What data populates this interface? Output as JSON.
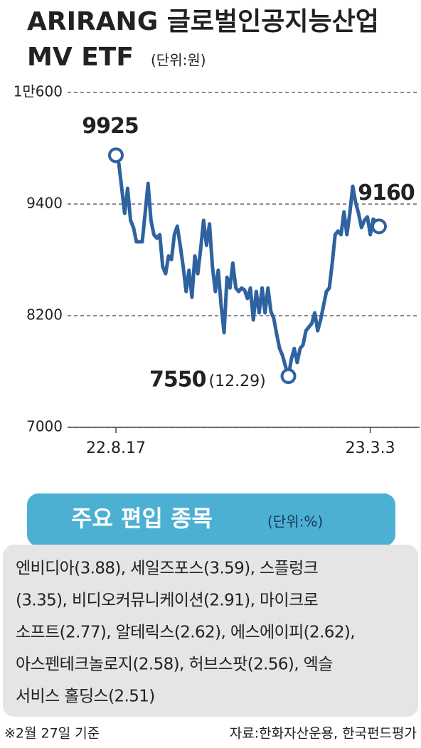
{
  "chart_data": {
    "type": "line",
    "title": [
      "ARIRANG 글로벌인공지능산업",
      "MV ETF"
    ],
    "unit": "(단위:원)",
    "categories": [
      "22.8.17",
      null,
      null,
      null,
      null,
      null,
      null,
      null,
      null,
      null,
      null,
      null,
      null,
      null,
      null,
      null,
      null,
      null,
      null,
      null,
      null,
      null,
      null,
      null,
      null,
      null,
      null,
      null,
      null,
      null,
      null,
      null,
      null,
      null,
      null,
      null,
      null,
      null,
      null,
      null,
      null,
      null,
      null,
      null,
      null,
      null,
      null,
      null,
      null,
      null,
      null,
      null,
      null,
      null,
      null,
      null,
      null,
      null,
      null,
      null,
      null,
      null,
      null,
      null,
      null,
      null,
      null,
      null,
      null,
      null,
      null,
      null,
      null,
      null,
      null,
      null,
      null,
      null,
      null,
      null,
      null,
      null,
      null,
      null,
      null,
      null,
      null,
      "23.3.3",
      null,
      null,
      null
    ],
    "series": [
      {
        "color": "#2f62a0",
        "values": [
          9925,
          9836,
          9568,
          9301,
          9568,
          9224,
          9148,
          8995,
          8995,
          8995,
          9301,
          9622,
          9224,
          9071,
          9033,
          9071,
          8728,
          8651,
          8842,
          8804,
          9071,
          9163,
          8957,
          8728,
          8460,
          8689,
          8399,
          8842,
          8651,
          8919,
          9224,
          8957,
          9186,
          8728,
          8460,
          8689,
          8307,
          8017,
          8613,
          8498,
          8766,
          8498,
          8460,
          8498,
          8475,
          8384,
          8498,
          8154,
          8460,
          8231,
          8498,
          8231,
          8498,
          8246,
          8170,
          7999,
          7847,
          7772,
          7657,
          7550,
          7734,
          7847,
          7696,
          7847,
          7886,
          8039,
          8078,
          8116,
          8231,
          8039,
          8154,
          8307,
          8460,
          8498,
          8766,
          9071,
          9110,
          9071,
          9316,
          9071,
          9301,
          9591,
          9415,
          9301,
          9148,
          9224,
          9262,
          9071,
          9239,
          9209,
          9160
        ]
      }
    ],
    "min_annotation": "(12.29)",
    "ylim": [
      7000,
      10600
    ],
    "yticks": [
      7000,
      8200,
      9400,
      {
        "value": 10600,
        "label": "1만600"
      }
    ],
    "grid": true
  },
  "holdings": {
    "title": "주요 편입 종목",
    "unit": "(단위:%)",
    "lines": [
      "엔비디아(3.88), 세일즈포스(3.59), 스플렁크",
      "(3.35), 비디오커뮤니케이션(2.91), 마이크로",
      "소프트(2.77), 알테릭스(2.62), 에스에이피(2.62),",
      "아스펜테크놀로지(2.58), 허브스팟(2.56), 엑슬",
      "서비스 홀딩스(2.51)"
    ]
  },
  "footer": {
    "note": "※2월 27일 기준",
    "source": "자료:한화자산운용, 한국펀드평가"
  }
}
